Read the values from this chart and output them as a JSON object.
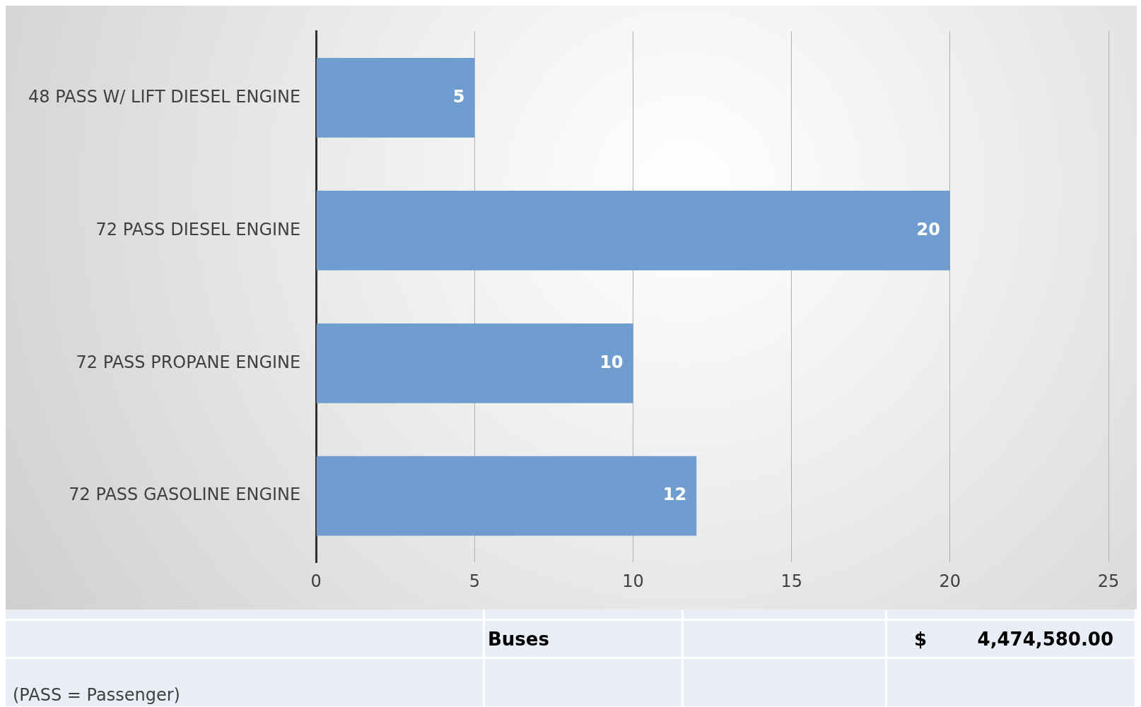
{
  "chart_data": {
    "type": "bar",
    "orientation": "horizontal",
    "categories": [
      "48 PASS W/ LIFT DIESEL ENGINE",
      "72 PASS DIESEL ENGINE",
      "72 PASS PROPANE ENGINE",
      "72 PASS GASOLINE ENGINE"
    ],
    "values": [
      5,
      20,
      10,
      12
    ],
    "color": "#6f9dcf",
    "xlim": [
      0,
      25
    ],
    "xticks": [
      0,
      5,
      10,
      15,
      20,
      25
    ],
    "grid": "x",
    "data_labels": true,
    "legend": false,
    "annotations": [
      "Buses",
      "$",
      "4,474,580.00",
      "(PASS = Passenger)"
    ]
  }
}
